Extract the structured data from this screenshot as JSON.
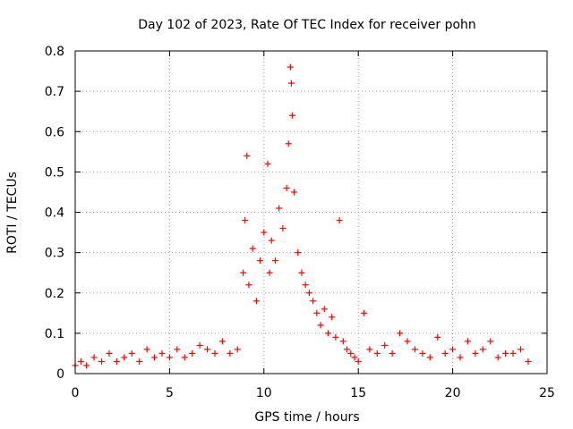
{
  "chart_data": {
    "type": "scatter",
    "title": "Day 102 of 2023, Rate Of TEC Index for receiver pohn",
    "xlabel": "GPS time / hours",
    "ylabel": "ROTI / TECUs",
    "xlim": [
      0,
      25
    ],
    "ylim": [
      0,
      0.8
    ],
    "xticks": [
      "0",
      "5",
      "10",
      "15",
      "20",
      "25"
    ],
    "yticks": [
      "0",
      "0.1",
      "0.2",
      "0.3",
      "0.4",
      "0.5",
      "0.6",
      "0.7",
      "0.8"
    ],
    "grid": true,
    "marker": "plus",
    "color": "#ff0000",
    "series": [
      {
        "name": "ROTI",
        "x": [
          0.0,
          0.3,
          0.6,
          1.0,
          1.4,
          1.8,
          2.2,
          2.6,
          3.0,
          3.4,
          3.8,
          4.2,
          4.6,
          5.0,
          5.4,
          5.8,
          6.2,
          6.6,
          7.0,
          7.4,
          7.8,
          8.2,
          8.6,
          8.9,
          9.0,
          9.1,
          9.2,
          9.4,
          9.6,
          9.8,
          10.0,
          10.2,
          10.3,
          10.4,
          10.6,
          10.8,
          11.0,
          11.2,
          11.3,
          11.4,
          11.45,
          11.5,
          11.6,
          11.8,
          12.0,
          12.2,
          12.4,
          12.6,
          12.8,
          13.0,
          13.2,
          13.4,
          13.6,
          13.8,
          14.0,
          14.2,
          14.4,
          14.6,
          14.8,
          15.0,
          15.3,
          15.6,
          16.0,
          16.4,
          16.8,
          17.2,
          17.6,
          18.0,
          18.4,
          18.8,
          19.2,
          19.6,
          20.0,
          20.4,
          20.8,
          21.2,
          21.6,
          22.0,
          22.4,
          22.8,
          23.2,
          23.6,
          24.0
        ],
        "y": [
          0.02,
          0.03,
          0.02,
          0.04,
          0.03,
          0.05,
          0.03,
          0.04,
          0.05,
          0.03,
          0.06,
          0.04,
          0.05,
          0.04,
          0.06,
          0.04,
          0.05,
          0.07,
          0.06,
          0.05,
          0.08,
          0.05,
          0.06,
          0.25,
          0.38,
          0.54,
          0.22,
          0.31,
          0.18,
          0.28,
          0.35,
          0.52,
          0.25,
          0.33,
          0.28,
          0.41,
          0.36,
          0.46,
          0.57,
          0.76,
          0.72,
          0.64,
          0.45,
          0.3,
          0.25,
          0.22,
          0.2,
          0.18,
          0.15,
          0.12,
          0.16,
          0.1,
          0.14,
          0.09,
          0.38,
          0.08,
          0.06,
          0.05,
          0.04,
          0.03,
          0.15,
          0.06,
          0.05,
          0.07,
          0.05,
          0.1,
          0.08,
          0.06,
          0.05,
          0.04,
          0.09,
          0.05,
          0.06,
          0.04,
          0.08,
          0.05,
          0.06,
          0.08,
          0.04,
          0.05,
          0.05,
          0.06,
          0.03
        ]
      }
    ]
  }
}
